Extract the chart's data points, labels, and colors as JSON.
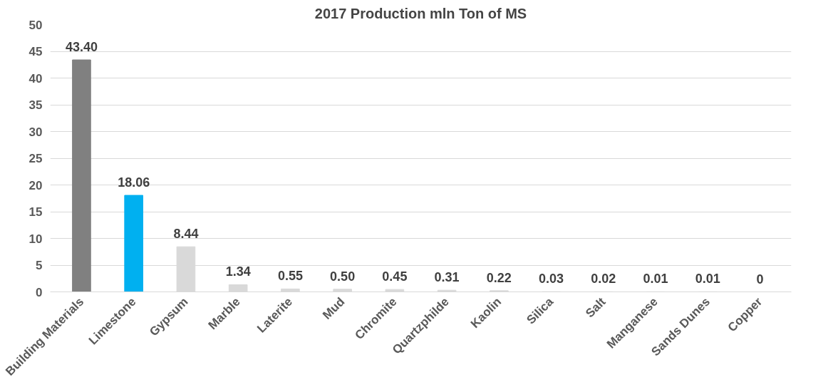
{
  "chart_data": {
    "type": "bar",
    "title": "2017 Production mln Ton of MS",
    "categories": [
      "Building Materials",
      "Limestone",
      "Gypsum",
      "Marble",
      "Laterite",
      "Mud",
      "Chromite",
      "Quartzphilde",
      "Kaolin",
      "Silica",
      "Salt",
      "Manganese",
      "Sands Dunes",
      "Copper"
    ],
    "values": [
      43.4,
      18.06,
      8.44,
      1.34,
      0.55,
      0.5,
      0.45,
      0.31,
      0.22,
      0.03,
      0.02,
      0.01,
      0.01,
      0
    ],
    "colors": [
      "#808080",
      "#00b0f0",
      "#d9d9d9",
      "#d9d9d9",
      "#d9d9d9",
      "#d9d9d9",
      "#d9d9d9",
      "#d9d9d9",
      "#d9d9d9",
      "#d9d9d9",
      "#d9d9d9",
      "#d9d9d9",
      "#d9d9d9",
      "#d9d9d9"
    ],
    "value_labels": [
      "43.40",
      "18.06",
      "8.44",
      "1.34",
      "0.55",
      "0.50",
      "0.45",
      "0.31",
      "0.22",
      "0.03",
      "0.02",
      "0.01",
      "0.01",
      "0"
    ],
    "ylim": [
      0,
      50
    ],
    "yticks": [
      0,
      5,
      10,
      15,
      20,
      25,
      30,
      35,
      40,
      45,
      50
    ],
    "grid": "y"
  }
}
